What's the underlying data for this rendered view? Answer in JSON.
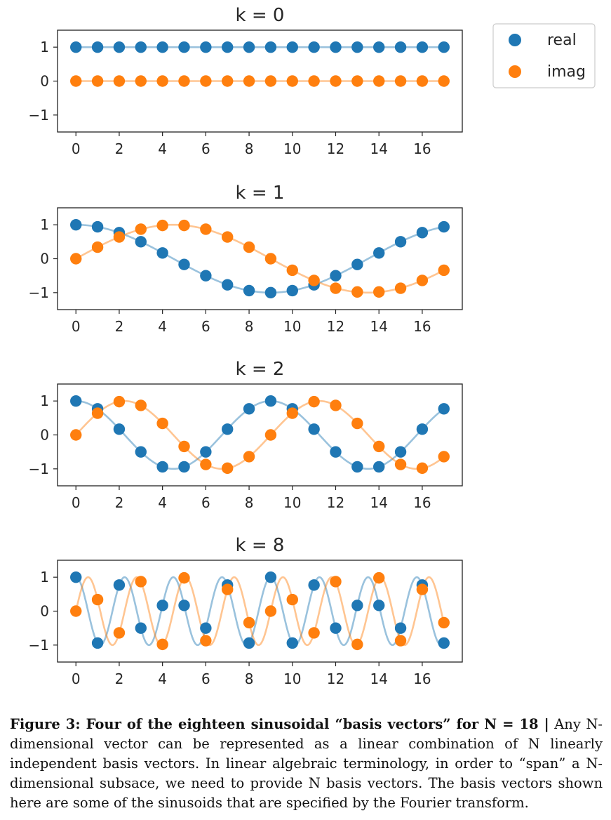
{
  "figure": {
    "caption_bold": "Figure 3: Four of the eighteen sinusoidal “basis vectors” for N = 18 |",
    "caption_text": " Any N-dimensional vector can be represented as a linear combination of N linearly independent basis vectors. In linear algebraic terminology, in order to “span” a N-dimensional subsace, we need to provide N basis vectors. The basis vectors shown here are some of the sinusoids that are specified by the Fourier transform."
  },
  "colors": {
    "real": "#1f77b4",
    "imag": "#ff7f0e"
  },
  "legend": [
    "real",
    "imag"
  ],
  "chart_data": [
    {
      "type": "scatter",
      "title": "k = 0",
      "k": 0,
      "x": [
        0,
        1,
        2,
        3,
        4,
        5,
        6,
        7,
        8,
        9,
        10,
        11,
        12,
        13,
        14,
        15,
        16,
        17
      ],
      "series": [
        {
          "name": "real",
          "values": [
            1,
            1,
            1,
            1,
            1,
            1,
            1,
            1,
            1,
            1,
            1,
            1,
            1,
            1,
            1,
            1,
            1,
            1
          ]
        },
        {
          "name": "imag",
          "values": [
            0,
            0,
            0,
            0,
            0,
            0,
            0,
            0,
            0,
            0,
            0,
            0,
            0,
            0,
            0,
            0,
            0,
            0
          ]
        }
      ],
      "xticks": [
        "0",
        "2",
        "4",
        "6",
        "8",
        "10",
        "12",
        "14",
        "16"
      ],
      "yticks": [
        "1",
        "0",
        "−1"
      ],
      "ylim": [
        -1.5,
        1.5
      ]
    },
    {
      "type": "scatter",
      "title": "k = 1",
      "k": 1,
      "x": [
        0,
        1,
        2,
        3,
        4,
        5,
        6,
        7,
        8,
        9,
        10,
        11,
        12,
        13,
        14,
        15,
        16,
        17
      ],
      "series": [
        {
          "name": "real",
          "values": [
            1.0,
            0.94,
            0.77,
            0.5,
            0.17,
            -0.17,
            -0.5,
            -0.77,
            -0.94,
            -1.0,
            -0.94,
            -0.77,
            -0.5,
            -0.17,
            0.17,
            0.5,
            0.77,
            0.94
          ]
        },
        {
          "name": "imag",
          "values": [
            0.0,
            0.34,
            0.64,
            0.87,
            0.98,
            0.98,
            0.87,
            0.64,
            0.34,
            0.0,
            -0.34,
            -0.64,
            -0.87,
            -0.98,
            -0.98,
            -0.87,
            -0.64,
            -0.34
          ]
        }
      ],
      "xticks": [
        "0",
        "2",
        "4",
        "6",
        "8",
        "10",
        "12",
        "14",
        "16"
      ],
      "yticks": [
        "1",
        "0",
        "−1"
      ],
      "ylim": [
        -1.5,
        1.5
      ]
    },
    {
      "type": "scatter",
      "title": "k = 2",
      "k": 2,
      "x": [
        0,
        1,
        2,
        3,
        4,
        5,
        6,
        7,
        8,
        9,
        10,
        11,
        12,
        13,
        14,
        15,
        16,
        17
      ],
      "series": [
        {
          "name": "real",
          "values": [
            1.0,
            0.77,
            0.17,
            -0.5,
            -0.94,
            -0.94,
            -0.5,
            0.17,
            0.77,
            1.0,
            0.77,
            0.17,
            -0.5,
            -0.94,
            -0.94,
            -0.5,
            0.17,
            0.77
          ]
        },
        {
          "name": "imag",
          "values": [
            0.0,
            0.64,
            0.98,
            0.87,
            0.34,
            -0.34,
            -0.87,
            -0.98,
            -0.64,
            0.0,
            0.64,
            0.98,
            0.87,
            0.34,
            -0.34,
            -0.87,
            -0.98,
            -0.64
          ]
        }
      ],
      "xticks": [
        "0",
        "2",
        "4",
        "6",
        "8",
        "10",
        "12",
        "14",
        "16"
      ],
      "yticks": [
        "1",
        "0",
        "−1"
      ],
      "ylim": [
        -1.5,
        1.5
      ]
    },
    {
      "type": "scatter",
      "title": "k = 8",
      "k": 8,
      "x": [
        0,
        1,
        2,
        3,
        4,
        5,
        6,
        7,
        8,
        9,
        10,
        11,
        12,
        13,
        14,
        15,
        16,
        17
      ],
      "series": [
        {
          "name": "real",
          "values": [
            1.0,
            -0.94,
            0.77,
            -0.5,
            0.17,
            0.17,
            -0.5,
            0.77,
            -0.94,
            1.0,
            -0.94,
            0.77,
            -0.5,
            0.17,
            0.17,
            -0.5,
            0.77,
            -0.94
          ]
        },
        {
          "name": "imag",
          "values": [
            0.0,
            0.34,
            -0.64,
            0.87,
            -0.98,
            0.98,
            -0.87,
            0.64,
            -0.34,
            0.0,
            0.34,
            -0.64,
            0.87,
            -0.98,
            0.98,
            -0.87,
            0.64,
            -0.34
          ]
        }
      ],
      "xticks": [
        "0",
        "2",
        "4",
        "6",
        "8",
        "10",
        "12",
        "14",
        "16"
      ],
      "yticks": [
        "1",
        "0",
        "−1"
      ],
      "ylim": [
        -1.5,
        1.5
      ]
    }
  ]
}
